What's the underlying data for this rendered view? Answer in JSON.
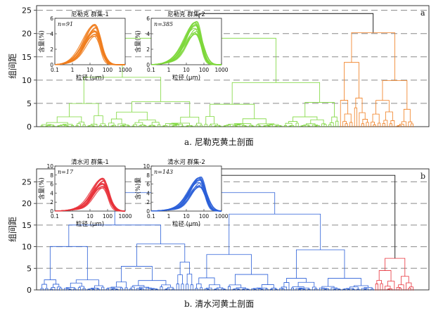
{
  "chart_data": [
    {
      "type": "dendrogram",
      "panel_label": "a",
      "caption": "a. 尼勒克黄土剖面",
      "ylabel": "组间距",
      "ylim": [
        0,
        26
      ],
      "yticks": [
        "0",
        "5",
        "10",
        "15",
        "20",
        "25"
      ],
      "grid": "dashed-horizontal",
      "clusters": [
        {
          "name": "尼勒克 群集-1",
          "n": "n=91",
          "color": "#f07c1c"
        },
        {
          "name": "尼勒克 群集-2",
          "n": "n=385",
          "color": "#7cd73a"
        }
      ],
      "root_height": 24.3,
      "cluster_heights": [
        20.2,
        19.0
      ],
      "insets": [
        {
          "title": "尼勒克 群集-1",
          "n_label": "n=91",
          "ylabel": "含量(%)",
          "xlabel": "粒径 (μm)",
          "yticks": [
            "0",
            "2",
            "4",
            "6"
          ],
          "ylim": [
            0,
            6
          ],
          "xticks": [
            "0.1",
            "1",
            "10",
            "100",
            "1000"
          ],
          "peak_x": 20,
          "peak_y": 5.2,
          "color": "#f07c1c"
        },
        {
          "title": "尼勒克 群集-2",
          "n_label": "n=385",
          "ylabel": "含量(%)",
          "xlabel": "粒径 (μm)",
          "yticks": [
            "0",
            "2",
            "4",
            "6"
          ],
          "ylim": [
            0,
            6
          ],
          "xticks": [
            "0.1",
            "1",
            "10",
            "100",
            "1000"
          ],
          "peak_x": 35,
          "peak_y": 5.6,
          "color": "#7cd73a"
        }
      ]
    },
    {
      "type": "dendrogram",
      "panel_label": "b",
      "caption": "b. 清水河黄土剖面",
      "ylabel": "组间距",
      "ylim": [
        0,
        28
      ],
      "yticks": [
        "0",
        "5",
        "10",
        "15",
        "20",
        "25"
      ],
      "grid": "dashed-horizontal",
      "clusters": [
        {
          "name": "清水河 群集-1",
          "n": "n=17",
          "color": "#e8313a"
        },
        {
          "name": "清水河 群集-2",
          "n": "n=143",
          "color": "#2a5fd8"
        }
      ],
      "root_height": 26.5,
      "cluster_heights": [
        7.3,
        22.5
      ],
      "insets": [
        {
          "title": "清水河 群集-1",
          "n_label": "n=17",
          "ylabel": "含量(%)",
          "xlabel": "粒径 (μm)",
          "yticks": [
            "0",
            "2",
            "4",
            "6",
            "8",
            "10"
          ],
          "ylim": [
            0,
            10
          ],
          "xticks": [
            "0.1",
            "1",
            "10",
            "100",
            "1000"
          ],
          "peak_x": 55,
          "peak_y": 7.3,
          "color": "#e8313a"
        },
        {
          "title": "清水河 群集-2",
          "n_label": "n=143",
          "ylabel": "含(%)量",
          "xlabel": "粒径 (μm)",
          "yticks": [
            "0",
            "2",
            "4",
            "6",
            "8",
            "10"
          ],
          "ylim": [
            0,
            10
          ],
          "xticks": [
            "0.1",
            "1",
            "10",
            "100",
            "1000"
          ],
          "peak_x": 60,
          "peak_y": 7.6,
          "color": "#2a5fd8"
        }
      ]
    }
  ]
}
